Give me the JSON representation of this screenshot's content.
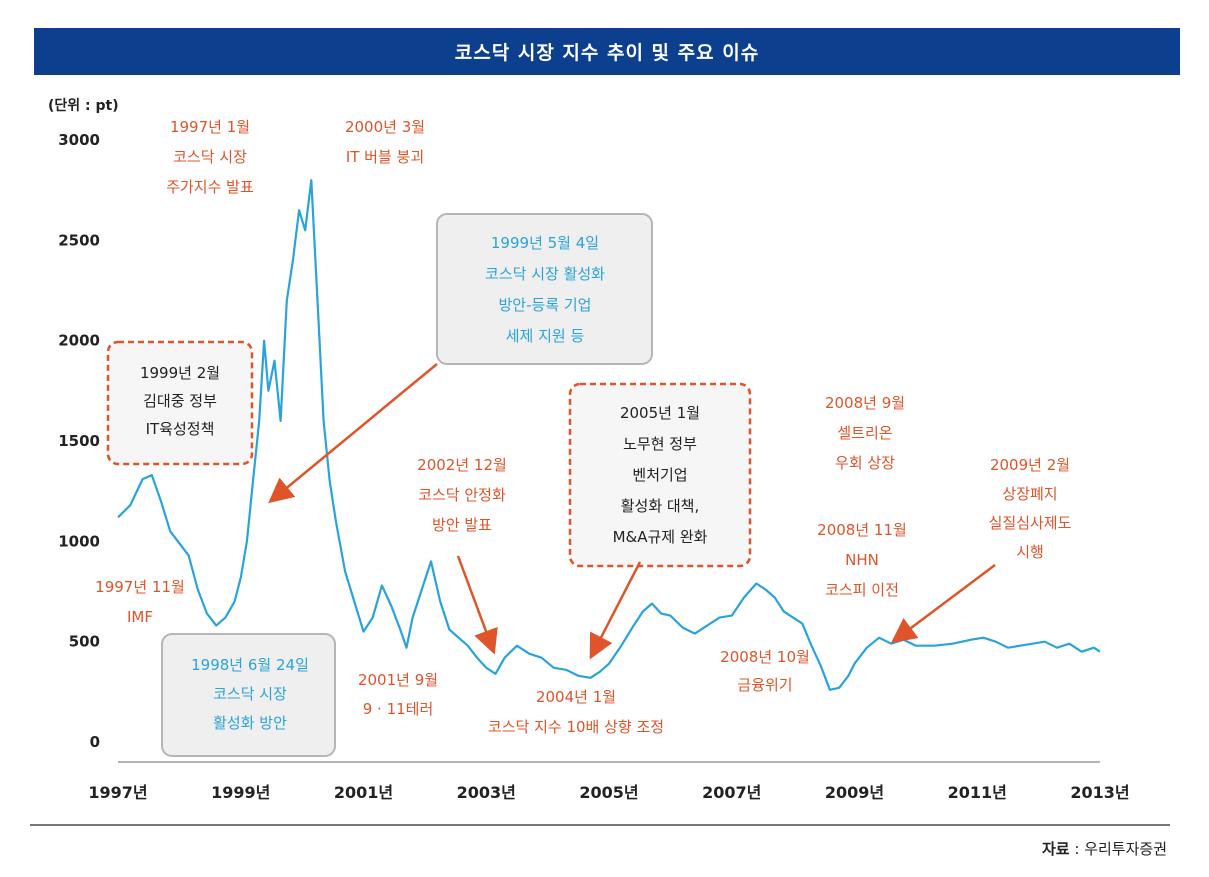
{
  "title": "코스닥 시장 지수 추이 및 주요 이슈",
  "unit_label": "(단위 : pt)",
  "source": {
    "label": "자료",
    "separator": " : ",
    "name": "우리투자증권"
  },
  "colors": {
    "title_bg": "#0d3f8f",
    "line": "#2aa3dc",
    "orange_text": "#e0542a",
    "blue_text": "#2aa3dc",
    "dashed_border": "#e0542a",
    "gray_box": "#efefef",
    "arrow": "#e0542a"
  },
  "chart_data": {
    "type": "line",
    "title": "코스닥 시장 지수 추이 및 주요 이슈",
    "ylabel": "(단위 : pt)",
    "ylim": [
      0,
      3000
    ],
    "yticks": [
      0,
      500,
      1000,
      1500,
      2000,
      2500,
      3000
    ],
    "xlim": [
      1997.0,
      2013.0
    ],
    "xtick_labels": [
      "1997년",
      "1999년",
      "2001년",
      "2003년",
      "2005년",
      "2007년",
      "2009년",
      "2011년",
      "2013년"
    ],
    "grid": false,
    "series": [
      {
        "values": [
          [
            1997.0,
            1120
          ],
          [
            1997.2,
            1180
          ],
          [
            1997.4,
            1310
          ],
          [
            1997.55,
            1330
          ],
          [
            1997.7,
            1200
          ],
          [
            1997.85,
            1050
          ],
          [
            1998.0,
            990
          ],
          [
            1998.15,
            930
          ],
          [
            1998.3,
            760
          ],
          [
            1998.45,
            640
          ],
          [
            1998.6,
            580
          ],
          [
            1998.75,
            620
          ],
          [
            1998.9,
            700
          ],
          [
            1999.0,
            820
          ],
          [
            1999.1,
            1000
          ],
          [
            1999.2,
            1300
          ],
          [
            1999.3,
            1600
          ],
          [
            1999.38,
            2000
          ],
          [
            1999.45,
            1750
          ],
          [
            1999.55,
            1900
          ],
          [
            1999.65,
            1600
          ],
          [
            1999.75,
            2200
          ],
          [
            1999.85,
            2400
          ],
          [
            1999.95,
            2650
          ],
          [
            2000.05,
            2550
          ],
          [
            2000.15,
            2800
          ],
          [
            2000.25,
            2200
          ],
          [
            2000.35,
            1600
          ],
          [
            2000.45,
            1300
          ],
          [
            2000.55,
            1100
          ],
          [
            2000.7,
            850
          ],
          [
            2000.85,
            700
          ],
          [
            2001.0,
            550
          ],
          [
            2001.15,
            620
          ],
          [
            2001.3,
            780
          ],
          [
            2001.45,
            680
          ],
          [
            2001.6,
            560
          ],
          [
            2001.7,
            470
          ],
          [
            2001.8,
            620
          ],
          [
            2001.95,
            760
          ],
          [
            2002.1,
            900
          ],
          [
            2002.25,
            700
          ],
          [
            2002.4,
            560
          ],
          [
            2002.55,
            520
          ],
          [
            2002.7,
            480
          ],
          [
            2002.85,
            420
          ],
          [
            2003.0,
            370
          ],
          [
            2003.15,
            340
          ],
          [
            2003.3,
            420
          ],
          [
            2003.5,
            480
          ],
          [
            2003.7,
            440
          ],
          [
            2003.9,
            420
          ],
          [
            2004.1,
            370
          ],
          [
            2004.3,
            360
          ],
          [
            2004.5,
            330
          ],
          [
            2004.7,
            320
          ],
          [
            2004.85,
            350
          ],
          [
            2005.0,
            390
          ],
          [
            2005.2,
            480
          ],
          [
            2005.4,
            580
          ],
          [
            2005.55,
            650
          ],
          [
            2005.7,
            690
          ],
          [
            2005.85,
            640
          ],
          [
            2006.0,
            630
          ],
          [
            2006.2,
            570
          ],
          [
            2006.4,
            540
          ],
          [
            2006.6,
            580
          ],
          [
            2006.8,
            620
          ],
          [
            2007.0,
            630
          ],
          [
            2007.2,
            720
          ],
          [
            2007.4,
            790
          ],
          [
            2007.55,
            760
          ],
          [
            2007.7,
            720
          ],
          [
            2007.85,
            650
          ],
          [
            2008.0,
            620
          ],
          [
            2008.15,
            590
          ],
          [
            2008.3,
            480
          ],
          [
            2008.45,
            380
          ],
          [
            2008.6,
            260
          ],
          [
            2008.75,
            270
          ],
          [
            2008.9,
            330
          ],
          [
            2009.0,
            390
          ],
          [
            2009.2,
            470
          ],
          [
            2009.4,
            520
          ],
          [
            2009.6,
            490
          ],
          [
            2009.8,
            510
          ],
          [
            2010.0,
            480
          ],
          [
            2010.3,
            480
          ],
          [
            2010.6,
            490
          ],
          [
            2010.9,
            510
          ],
          [
            2011.1,
            520
          ],
          [
            2011.3,
            500
          ],
          [
            2011.5,
            470
          ],
          [
            2011.7,
            480
          ],
          [
            2011.9,
            490
          ],
          [
            2012.1,
            500
          ],
          [
            2012.3,
            470
          ],
          [
            2012.5,
            490
          ],
          [
            2012.7,
            450
          ],
          [
            2012.9,
            470
          ],
          [
            2013.0,
            450
          ]
        ]
      }
    ],
    "annotations": [
      {
        "id": "a1997-1",
        "style": "orange",
        "lines": [
          "1997년 1월",
          "코스닥 시장",
          "주가지수 발표"
        ]
      },
      {
        "id": "a2000-3",
        "style": "orange",
        "lines": [
          "2000년 3월",
          "IT 버블 붕괴"
        ]
      },
      {
        "id": "a1999-5",
        "style": "gray-blue",
        "lines": [
          "1999년 5월 4일",
          "코스닥 시장 활성화",
          "방안-등록 기업",
          "세제 지원 등"
        ]
      },
      {
        "id": "a1999-2",
        "style": "dashed",
        "lines": [
          "1999년 2월",
          "김대중 정부",
          "IT육성정책"
        ]
      },
      {
        "id": "a2005-1",
        "style": "dashed",
        "lines": [
          "2005년 1월",
          "노무현 정부",
          "벤처기업",
          "활성화 대책,",
          "M&A규제 완화"
        ]
      },
      {
        "id": "a2008-9",
        "style": "orange",
        "lines": [
          "2008년 9월",
          "셀트리온",
          "우회 상장"
        ]
      },
      {
        "id": "a2009-2",
        "style": "orange",
        "lines": [
          "2009년 2월",
          "상장폐지",
          "실질심사제도",
          "시행"
        ]
      },
      {
        "id": "a2002-12",
        "style": "orange",
        "lines": [
          "2002년 12월",
          "코스닥 안정화",
          "방안 발표"
        ]
      },
      {
        "id": "a2008-11",
        "style": "orange",
        "lines": [
          "2008년 11월",
          "NHN",
          "코스피 이전"
        ]
      },
      {
        "id": "a1997-11",
        "style": "orange",
        "lines": [
          "1997년 11월",
          "IMF"
        ]
      },
      {
        "id": "a1998-6",
        "style": "gray-blue",
        "lines": [
          "1998년 6월 24일",
          "코스닥 시장",
          "활성화 방안"
        ]
      },
      {
        "id": "a2001-9",
        "style": "orange",
        "lines": [
          "2001년 9월",
          "9 · 11테러"
        ]
      },
      {
        "id": "a2004-1",
        "style": "orange",
        "lines": [
          "2004년 1월",
          "코스닥 지수 10배 상향 조정"
        ]
      },
      {
        "id": "a2008-10",
        "style": "orange",
        "lines": [
          "2008년 10월",
          "금융위기"
        ]
      }
    ]
  }
}
